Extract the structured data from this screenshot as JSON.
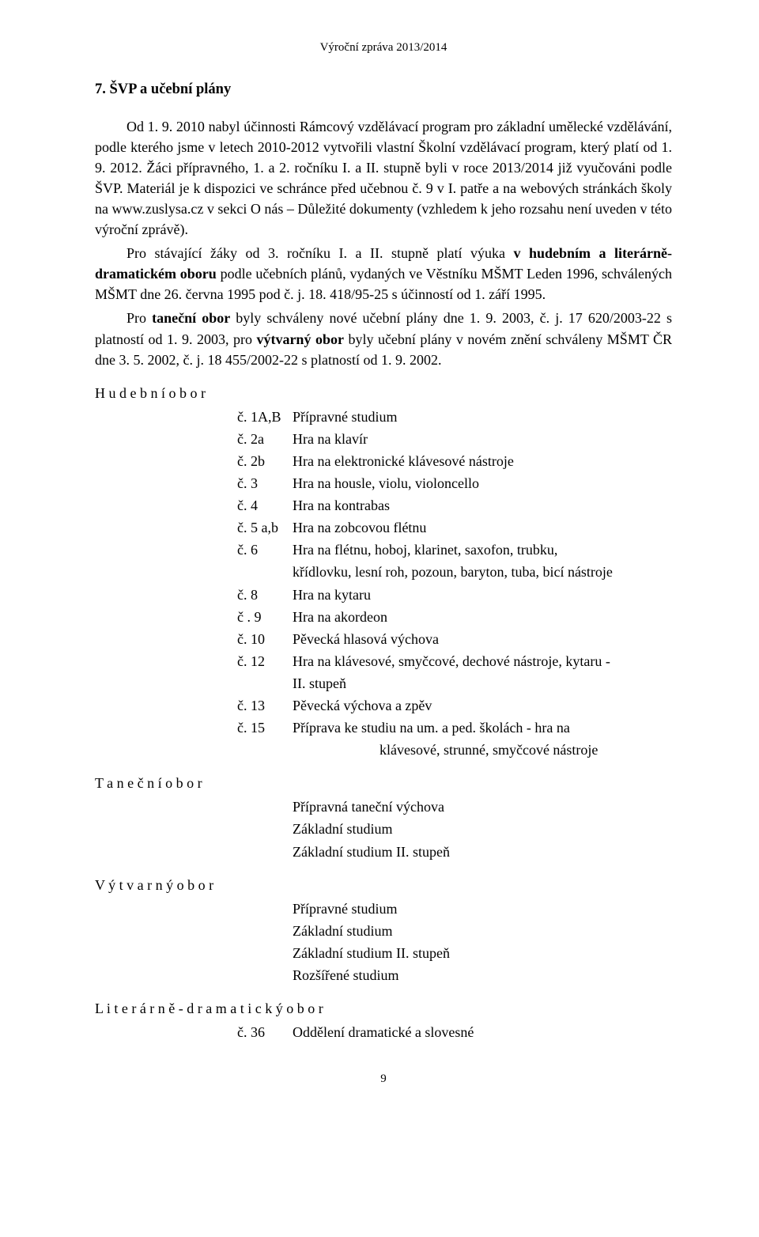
{
  "header": "Výroční zpráva 2013/2014",
  "section_title": "7. ŠVP a učební plány",
  "paragraphs": {
    "p1a": "Od 1. 9. 2010 nabyl účinnosti Rámcový vzdělávací program pro základní umělecké vzdělávání, podle kterého jsme v letech 2010-2012 vytvořili vlastní Školní vzdělávací program, který platí od 1. 9. 2012. Žáci přípravného, 1. a 2. ročníku I. a II. stupně byli v roce 2013/2014 již vyučováni podle ŠVP. Materiál je k dispozici ve schránce před učebnou č. 9 v I. patře a na webových stránkách školy na www.zuslysa.cz v sekci O nás – Důležité dokumenty (vzhledem k jeho rozsahu není uveden v této výroční zprávě).",
    "p2_pre": "Pro stávající žáky od 3. ročníku I. a II. stupně platí výuka ",
    "p2_bold": "v hudebním a literárně-dramatickém oboru",
    "p2_mid": " podle učebních plánů, vydaných ve Věstníku MŠMT Leden 1996, schválených MŠMT dne 26. června 1995 pod č. j. 18. 418/95-25 s účinností od 1. září 1995.",
    "p3_pre": "Pro ",
    "p3_bold1": "taneční obor",
    "p3_mid1": " byly schváleny nové učební plány dne 1. 9. 2003, č. j. 17 620/2003-22 s platností od 1. 9. 2003, pro ",
    "p3_bold2": "výtvarný obor",
    "p3_mid2": " byly učební plány v novém znění schváleny MŠMT ČR dne 3. 5. 2002, č. j. 18 455/2002-22 s platností od 1. 9. 2002."
  },
  "obor": {
    "hudebni": {
      "label": "H u d e b n í  o b o r",
      "items": [
        {
          "c": "č. 1A,B",
          "t": "Přípravné studium"
        },
        {
          "c": "č. 2a",
          "t": "Hra na klavír"
        },
        {
          "c": "č. 2b",
          "t": "Hra na elektronické klávesové nástroje"
        },
        {
          "c": "č. 3",
          "t": "Hra na housle, violu, violoncello"
        },
        {
          "c": "č. 4",
          "t": "Hra na kontrabas"
        },
        {
          "c": "č. 5 a,b",
          "t": "Hra na zobcovou flétnu"
        },
        {
          "c": "č. 6",
          "t": "Hra na flétnu, hoboj, klarinet, saxofon, trubku,"
        },
        {
          "c": "",
          "t": "křídlovku, lesní roh, pozoun, baryton, tuba, bicí nástroje"
        },
        {
          "c": "č. 8",
          "t": "Hra na kytaru"
        },
        {
          "c": "č . 9",
          "t": "Hra na akordeon"
        },
        {
          "c": "č. 10",
          "t": "Pěvecká hlasová výchova"
        },
        {
          "c": "č. 12",
          "t": "Hra na klávesové, smyčcové, dechové nástroje, kytaru -"
        },
        {
          "c": "",
          "t": "II. stupeň"
        },
        {
          "c": "č. 13",
          "t": "Pěvecká výchova a zpěv"
        },
        {
          "c": "č. 15",
          "t": "Příprava ke studiu na um. a ped. školách - hra na"
        }
      ],
      "tail_indent": "klávesové, strunné, smyčcové nástroje"
    },
    "tanecni": {
      "label": "T a n e č n í  o b o r",
      "items": [
        "Přípravná taneční výchova",
        "Základní studium",
        "Základní studium II. stupeň"
      ]
    },
    "vytvarny": {
      "label": "V ý t v a r n ý  o b o r",
      "items": [
        "Přípravné studium",
        "Základní studium",
        "Základní studium II. stupeň",
        "Rozšířené studium"
      ]
    },
    "litdram": {
      "label": "L i t e r á r n ě - d r a m a t i c k ý  o b o r",
      "items": [
        {
          "c": "č. 36",
          "t": "Oddělení dramatické a slovesné"
        }
      ]
    }
  },
  "footer_page": "9"
}
